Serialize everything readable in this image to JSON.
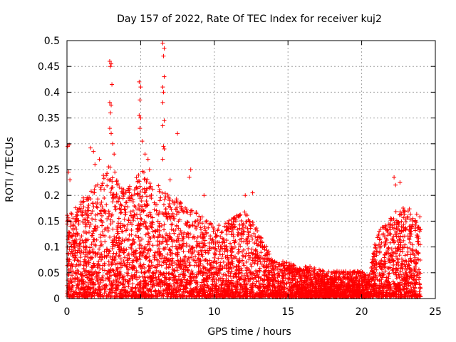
{
  "chart_data": {
    "type": "scatter",
    "title": "Day 157 of 2022, Rate Of TEC Index for receiver kuj2",
    "xlabel": "GPS time / hours",
    "ylabel": "ROTI / TECUs",
    "xlim": [
      0,
      25
    ],
    "ylim": [
      0,
      0.5
    ],
    "x_ticks": [
      0,
      5,
      10,
      15,
      20,
      25
    ],
    "x_tick_labels": [
      "0",
      "5",
      "10",
      "15",
      "20",
      "25"
    ],
    "y_ticks": [
      0,
      0.05,
      0.1,
      0.15,
      0.2,
      0.25,
      0.3,
      0.35,
      0.4,
      0.45,
      0.5
    ],
    "y_tick_labels": [
      "0",
      "0.05",
      "0.1",
      "0.15",
      "0.2",
      "0.25",
      "0.3",
      "0.35",
      "0.4",
      "0.45",
      "0.5"
    ],
    "grid": true,
    "marker": "+",
    "color": "#ff0000",
    "series": [
      {
        "name": "ROTI",
        "envelope": {
          "x": [
            0,
            0.5,
            1,
            1.5,
            2,
            2.5,
            3,
            3.5,
            4,
            4.5,
            5,
            5.5,
            6,
            6.5,
            7,
            7.5,
            8,
            8.5,
            9,
            9.5,
            10,
            10.5,
            11,
            11.5,
            12,
            12.5,
            13,
            13.5,
            14,
            14.5,
            15,
            15.5,
            16,
            16.5,
            17,
            17.5,
            18,
            18.5,
            19,
            19.5,
            20,
            20.5,
            21,
            21.5,
            22,
            22.5,
            23,
            23.5,
            24
          ],
          "y_max": [
            0.16,
            0.17,
            0.19,
            0.2,
            0.22,
            0.24,
            0.26,
            0.22,
            0.21,
            0.22,
            0.25,
            0.24,
            0.22,
            0.21,
            0.2,
            0.19,
            0.18,
            0.17,
            0.16,
            0.15,
            0.14,
            0.14,
            0.15,
            0.16,
            0.17,
            0.15,
            0.13,
            0.1,
            0.07,
            0.07,
            0.07,
            0.06,
            0.06,
            0.06,
            0.055,
            0.05,
            0.05,
            0.055,
            0.05,
            0.05,
            0.05,
            0.04,
            0.12,
            0.14,
            0.16,
            0.17,
            0.18,
            0.17,
            0.16
          ]
        },
        "outliers": [
          {
            "x": 0.05,
            "y": 0.295
          },
          {
            "x": 0.15,
            "y": 0.298
          },
          {
            "x": 0.1,
            "y": 0.245
          },
          {
            "x": 0.2,
            "y": 0.23
          },
          {
            "x": 1.6,
            "y": 0.292
          },
          {
            "x": 1.8,
            "y": 0.285
          },
          {
            "x": 1.9,
            "y": 0.26
          },
          {
            "x": 2.2,
            "y": 0.27
          },
          {
            "x": 2.9,
            "y": 0.46
          },
          {
            "x": 3.0,
            "y": 0.455
          },
          {
            "x": 2.95,
            "y": 0.45
          },
          {
            "x": 3.05,
            "y": 0.415
          },
          {
            "x": 2.9,
            "y": 0.38
          },
          {
            "x": 3.0,
            "y": 0.375
          },
          {
            "x": 2.95,
            "y": 0.36
          },
          {
            "x": 2.9,
            "y": 0.33
          },
          {
            "x": 3.0,
            "y": 0.32
          },
          {
            "x": 3.1,
            "y": 0.3
          },
          {
            "x": 3.2,
            "y": 0.28
          },
          {
            "x": 3.25,
            "y": 0.245
          },
          {
            "x": 4.9,
            "y": 0.42
          },
          {
            "x": 5.0,
            "y": 0.41
          },
          {
            "x": 4.95,
            "y": 0.385
          },
          {
            "x": 4.9,
            "y": 0.355
          },
          {
            "x": 5.0,
            "y": 0.35
          },
          {
            "x": 4.95,
            "y": 0.33
          },
          {
            "x": 5.1,
            "y": 0.305
          },
          {
            "x": 5.3,
            "y": 0.28
          },
          {
            "x": 5.5,
            "y": 0.27
          },
          {
            "x": 5.6,
            "y": 0.25
          },
          {
            "x": 6.5,
            "y": 0.495
          },
          {
            "x": 6.6,
            "y": 0.485
          },
          {
            "x": 6.55,
            "y": 0.47
          },
          {
            "x": 6.6,
            "y": 0.43
          },
          {
            "x": 6.5,
            "y": 0.41
          },
          {
            "x": 6.55,
            "y": 0.4
          },
          {
            "x": 6.5,
            "y": 0.38
          },
          {
            "x": 6.6,
            "y": 0.345
          },
          {
            "x": 6.5,
            "y": 0.335
          },
          {
            "x": 6.55,
            "y": 0.295
          },
          {
            "x": 6.6,
            "y": 0.29
          },
          {
            "x": 6.5,
            "y": 0.27
          },
          {
            "x": 7.5,
            "y": 0.32
          },
          {
            "x": 7.0,
            "y": 0.23
          },
          {
            "x": 8.4,
            "y": 0.25
          },
          {
            "x": 8.3,
            "y": 0.235
          },
          {
            "x": 9.3,
            "y": 0.2
          },
          {
            "x": 12.6,
            "y": 0.205
          },
          {
            "x": 12.1,
            "y": 0.2
          },
          {
            "x": 22.2,
            "y": 0.235
          },
          {
            "x": 22.6,
            "y": 0.225
          },
          {
            "x": 22.3,
            "y": 0.22
          }
        ]
      }
    ]
  }
}
